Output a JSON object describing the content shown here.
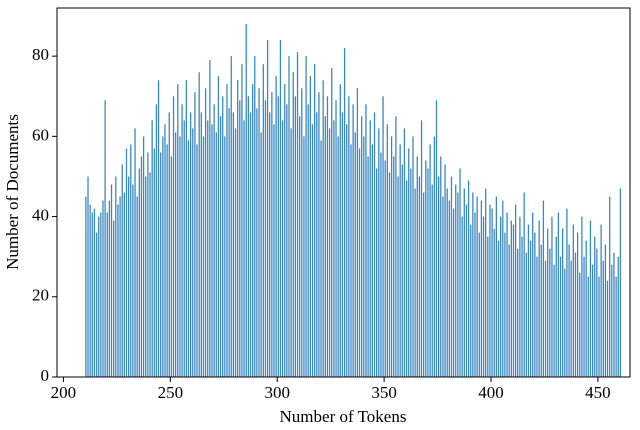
{
  "chart_data": {
    "type": "histogram",
    "xlabel": "Number of Tokens",
    "ylabel": "Number of Documents",
    "color": "#3a87c0",
    "bins": [
      210,
      211,
      212,
      213,
      214,
      215,
      216,
      217,
      218,
      219,
      220,
      221,
      222,
      223,
      224,
      225,
      226,
      227,
      228,
      229,
      230,
      231,
      232,
      233,
      234,
      235,
      236,
      237,
      238,
      239,
      240,
      241,
      242,
      243,
      244,
      245,
      246,
      247,
      248,
      249,
      250,
      251,
      252,
      253,
      254,
      255,
      256,
      257,
      258,
      259,
      260,
      261,
      262,
      263,
      264,
      265,
      266,
      267,
      268,
      269,
      270,
      271,
      272,
      273,
      274,
      275,
      276,
      277,
      278,
      279,
      280,
      281,
      282,
      283,
      284,
      285,
      286,
      287,
      288,
      289,
      290,
      291,
      292,
      293,
      294,
      295,
      296,
      297,
      298,
      299,
      300,
      301,
      302,
      303,
      304,
      305,
      306,
      307,
      308,
      309,
      310,
      311,
      312,
      313,
      314,
      315,
      316,
      317,
      318,
      319,
      320,
      321,
      322,
      323,
      324,
      325,
      326,
      327,
      328,
      329,
      330,
      331,
      332,
      333,
      334,
      335,
      336,
      337,
      338,
      339,
      340,
      341,
      342,
      343,
      344,
      345,
      346,
      347,
      348,
      349,
      350,
      351,
      352,
      353,
      354,
      355,
      356,
      357,
      358,
      359,
      360,
      361,
      362,
      363,
      364,
      365,
      366,
      367,
      368,
      369,
      370,
      371,
      372,
      373,
      374,
      375,
      376,
      377,
      378,
      379,
      380,
      381,
      382,
      383,
      384,
      385,
      386,
      387,
      388,
      389,
      390,
      391,
      392,
      393,
      394,
      395,
      396,
      397,
      398,
      399,
      400,
      401,
      402,
      403,
      404,
      405,
      406,
      407,
      408,
      409,
      410,
      411,
      412,
      413,
      414,
      415,
      416,
      417,
      418,
      419,
      420,
      421,
      422,
      423,
      424,
      425,
      426,
      427,
      428,
      429,
      430,
      431,
      432,
      433,
      434,
      435,
      436,
      437,
      438,
      439,
      440,
      441,
      442,
      443,
      444,
      445,
      446,
      447,
      448,
      449,
      450,
      451,
      452,
      453,
      454,
      455,
      456,
      457,
      458,
      459,
      460,
      461
    ],
    "values": [
      45,
      50,
      43,
      41,
      42,
      36,
      40,
      41,
      44,
      69,
      41,
      44,
      48,
      39,
      50,
      43,
      45,
      53,
      46,
      57,
      50,
      58,
      48,
      62,
      45,
      52,
      55,
      60,
      50,
      56,
      51,
      64,
      57,
      68,
      74,
      56,
      60,
      63,
      58,
      66,
      55,
      70,
      61,
      73,
      60,
      68,
      64,
      74,
      59,
      66,
      62,
      71,
      58,
      76,
      66,
      60,
      72,
      64,
      79,
      63,
      68,
      61,
      75,
      65,
      70,
      60,
      73,
      67,
      80,
      66,
      62,
      74,
      69,
      78,
      64,
      88,
      70,
      66,
      73,
      80,
      67,
      72,
      61,
      78,
      69,
      84,
      66,
      71,
      63,
      75,
      70,
      84,
      64,
      73,
      68,
      80,
      62,
      76,
      70,
      81,
      65,
      72,
      60,
      80,
      68,
      75,
      63,
      78,
      66,
      71,
      59,
      74,
      65,
      70,
      62,
      77,
      64,
      69,
      60,
      73,
      66,
      82,
      63,
      70,
      58,
      68,
      61,
      72,
      57,
      65,
      60,
      68,
      55,
      64,
      58,
      66,
      52,
      62,
      56,
      70,
      54,
      63,
      51,
      60,
      55,
      65,
      50,
      58,
      53,
      62,
      49,
      57,
      52,
      60,
      47,
      55,
      50,
      64,
      46,
      54,
      52,
      58,
      48,
      60,
      69,
      50,
      55,
      45,
      53,
      47,
      44,
      50,
      42,
      48,
      46,
      52,
      40,
      47,
      43,
      49,
      38,
      46,
      41,
      45,
      36,
      44,
      40,
      47,
      35,
      43,
      42,
      37,
      45,
      34,
      40,
      44,
      36,
      41,
      33,
      39,
      38,
      43,
      32,
      40,
      35,
      46,
      31,
      38,
      34,
      41,
      36,
      30,
      39,
      33,
      44,
      29,
      37,
      32,
      40,
      28,
      35,
      41,
      30,
      37,
      27,
      42,
      33,
      29,
      38,
      31,
      36,
      26,
      40,
      30,
      34,
      25,
      39,
      28,
      35,
      32,
      25,
      38,
      29,
      33,
      24,
      45,
      28,
      31,
      25,
      30,
      47
    ],
    "xlim": [
      197,
      465
    ],
    "ylim": [
      0,
      92
    ],
    "xticks": [
      200,
      250,
      300,
      350,
      400,
      450
    ],
    "yticks": [
      0,
      20,
      40,
      60,
      80
    ]
  }
}
